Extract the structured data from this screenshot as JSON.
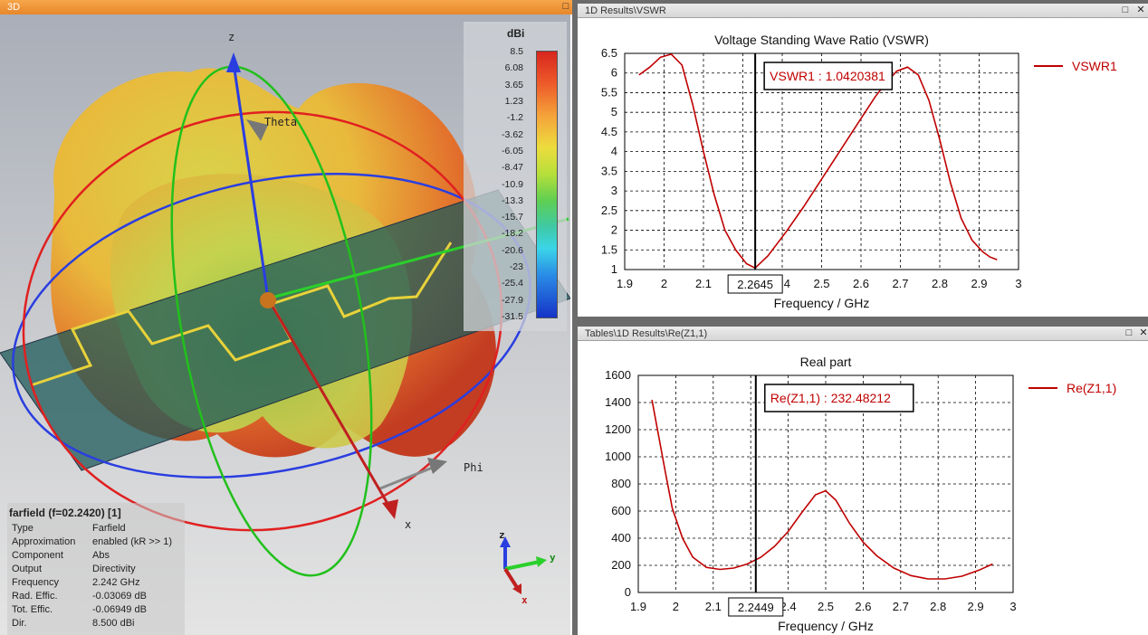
{
  "left_window": {
    "title": "3D",
    "colorbar": {
      "unit": "dBi",
      "ticks": [
        "8.5",
        "6.08",
        "3.65",
        "1.23",
        "-1.2",
        "-3.62",
        "-6.05",
        "-8.47",
        "-10.9",
        "-13.3",
        "-15.7",
        "-18.2",
        "-20.6",
        "-23",
        "-25.4",
        "-27.9",
        "-31.5"
      ]
    },
    "axes": {
      "z": "z",
      "x": "x",
      "theta": "Theta",
      "phi": "Phi"
    },
    "triad": {
      "z": "z",
      "y": "y",
      "x": "x"
    },
    "info": {
      "title": "farfield (f=02.2420) [1]",
      "rows": [
        {
          "label": "Type",
          "value": "Farfield"
        },
        {
          "label": "Approximation",
          "value": "enabled (kR >> 1)"
        },
        {
          "label": "Component",
          "value": "Abs"
        },
        {
          "label": "Output",
          "value": "Directivity"
        },
        {
          "label": "Frequency",
          "value": "2.242 GHz"
        },
        {
          "label": "Rad. Effic.",
          "value": "-0.03069 dB"
        },
        {
          "label": "Tot. Effic.",
          "value": "-0.06949 dB"
        },
        {
          "label": "Dir.",
          "value": "8.500 dBi"
        }
      ]
    }
  },
  "windows": [
    {
      "title": "1D Results\\VSWR",
      "chart_data": {
        "type": "line",
        "title": "Voltage Standing Wave Ratio (VSWR)",
        "xlabel": "Frequency / GHz",
        "ylabel": "",
        "xlim": [
          1.9,
          3
        ],
        "ylim": [
          1,
          6.5
        ],
        "xticks": [
          "1.9",
          "2",
          "2.1",
          "2",
          "2.4",
          "2.5",
          "2.6",
          "2.7",
          "2.8",
          "2.9",
          "3"
        ],
        "yticks": [
          "1",
          "1.5",
          "2",
          "2.5",
          "3",
          "3.5",
          "4",
          "4.5",
          "5",
          "5.5",
          "6",
          "6.5"
        ],
        "grid": true,
        "legend_position": "right",
        "series": [
          {
            "name": "VSWR1",
            "color": "#c00000",
            "x": [
              1.94,
              1.97,
              2.0,
              2.03,
              2.06,
              2.09,
              2.12,
              2.15,
              2.18,
              2.21,
              2.24,
              2.2645,
              2.3,
              2.35,
              2.4,
              2.45,
              2.5,
              2.55,
              2.6,
              2.63,
              2.66,
              2.69,
              2.72,
              2.75,
              2.78,
              2.81,
              2.84,
              2.87,
              2.9,
              2.92,
              2.94
            ],
            "y": [
              5.95,
              6.15,
              6.4,
              6.48,
              6.2,
              5.2,
              4.0,
              2.9,
              2.0,
              1.5,
              1.15,
              1.04,
              1.35,
              1.95,
              2.6,
              3.3,
              4.0,
              4.7,
              5.4,
              5.75,
              6.05,
              6.15,
              5.95,
              5.3,
              4.3,
              3.2,
              2.3,
              1.75,
              1.45,
              1.32,
              1.25
            ]
          }
        ],
        "marker": {
          "x": "2.2645",
          "label": "VSWR1 : 1.0420381"
        }
      }
    },
    {
      "title": "Tables\\1D Results\\Re(Z1,1)",
      "chart_data": {
        "type": "line",
        "title": "Real part",
        "xlabel": "Frequency / GHz",
        "ylabel": "",
        "xlim": [
          1.9,
          3
        ],
        "ylim": [
          0,
          1600
        ],
        "xticks": [
          "1.9",
          "2",
          "2.1",
          "",
          "2.4",
          "2.5",
          "2.6",
          "2.7",
          "2.8",
          "2.9",
          "3"
        ],
        "yticks": [
          "0",
          "200",
          "400",
          "600",
          "800",
          "1000",
          "1200",
          "1400",
          "1600"
        ],
        "grid": true,
        "legend_position": "right",
        "series": [
          {
            "name": "Re(Z1,1)",
            "color": "#c00000",
            "x": [
              1.94,
              1.96,
              1.98,
              2.0,
              2.03,
              2.06,
              2.1,
              2.14,
              2.18,
              2.22,
              2.26,
              2.3,
              2.34,
              2.38,
              2.42,
              2.45,
              2.48,
              2.52,
              2.56,
              2.6,
              2.65,
              2.7,
              2.75,
              2.8,
              2.85,
              2.9,
              2.94
            ],
            "y": [
              1420,
              1150,
              880,
              620,
              400,
              260,
              185,
              170,
              180,
              210,
              260,
              340,
              450,
              590,
              720,
              750,
              680,
              510,
              370,
              270,
              180,
              125,
              100,
              100,
              120,
              165,
              210
            ]
          }
        ],
        "marker": {
          "x": "2.2449",
          "label": "Re(Z1,1) : 232.48212"
        }
      }
    }
  ]
}
